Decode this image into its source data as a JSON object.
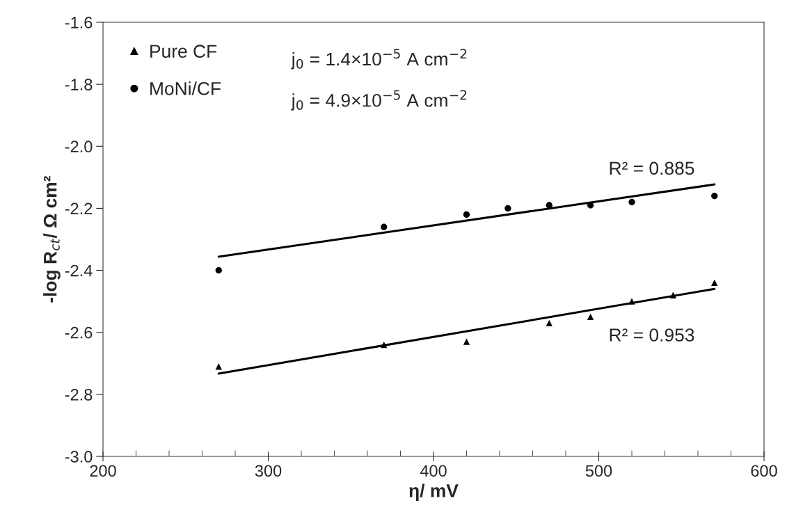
{
  "chart_data": {
    "type": "scatter",
    "xlabel": "η/ mV",
    "ylabel": "-log R$_{ct}$/ Ω cm²",
    "xlim": [
      200,
      600
    ],
    "xticks": [
      200,
      300,
      400,
      500,
      600
    ],
    "ylim": [
      -3.0,
      -1.6
    ],
    "yticks": [
      {
        "value": -3.0,
        "label": "-3.0"
      },
      {
        "value": -2.8,
        "label": "-2.8"
      },
      {
        "value": -2.6,
        "label": "-2.6"
      },
      {
        "value": -2.4,
        "label": "-2.4"
      },
      {
        "value": -2.2,
        "label": "-2.2"
      },
      {
        "value": -2.0,
        "label": "-2.0"
      },
      {
        "value": -1.8,
        "label": "-1.8"
      },
      {
        "value": -1.6,
        "label": "-1.6"
      }
    ],
    "grid": false,
    "legend": "top left",
    "series": [
      {
        "name": "Pure CF",
        "marker": "triangle",
        "color": "#000000",
        "x": [
          270,
          370,
          420,
          470,
          495,
          520,
          545,
          570
        ],
        "values": [
          -2.71,
          -2.64,
          -2.63,
          -2.57,
          -2.55,
          -2.5,
          -2.48,
          -2.44
        ]
      },
      {
        "name": "MoNi/CF",
        "marker": "circle",
        "color": "#000000",
        "x": [
          270,
          370,
          420,
          445,
          470,
          495,
          520,
          570
        ],
        "values": [
          -2.4,
          -2.26,
          -2.22,
          -2.2,
          -2.19,
          -2.19,
          -2.18,
          -2.16
        ]
      },
      {
        "type": "line",
        "marker": "none",
        "line_style": "solid",
        "color": "#000000",
        "x": [
          270,
          570
        ],
        "values": [
          -2.733,
          -2.46
        ]
      },
      {
        "type": "line",
        "marker": "none",
        "line_style": "solid",
        "color": "#000000",
        "x": [
          270,
          570
        ],
        "values": [
          -2.356,
          -2.123
        ]
      }
    ],
    "annotations": [
      "j$_{0}$ = 1.4×10$^{−5}$ A cm$^{−2}$",
      "j$_{0}$ = 4.9×10$^{−5}$ A cm$^{−2}$",
      "R² = 0.885",
      "R² = 0.953"
    ]
  }
}
